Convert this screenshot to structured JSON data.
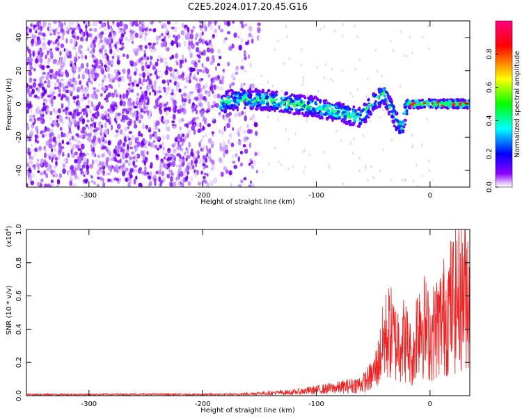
{
  "title": "C2E5.2024.017.20.45.G16",
  "chart_data": [
    {
      "type": "heatmap",
      "xlabel": "Height of straight line (km)",
      "ylabel": "Frequency (Hz)",
      "xlim": [
        -355,
        35
      ],
      "ylim": [
        -50,
        50
      ],
      "xticks": [
        -300,
        -200,
        -100,
        0
      ],
      "yticks": [
        -40,
        -20,
        0,
        20,
        40
      ],
      "colorbar": {
        "label": "Normalized spectral amplitude",
        "range": [
          0,
          1
        ],
        "ticks": [
          0.0,
          0.2,
          0.4,
          0.6,
          0.8
        ],
        "colors": [
          "#ffffff",
          "#8f00ff",
          "#0000ff",
          "#00ffff",
          "#00ff00",
          "#ffff00",
          "#ff0000",
          "#ff0080"
        ]
      },
      "ridge": [
        {
          "x": -180,
          "y": 2
        },
        {
          "x": -160,
          "y": 3
        },
        {
          "x": -140,
          "y": 2
        },
        {
          "x": -120,
          "y": 0
        },
        {
          "x": -100,
          "y": -2
        },
        {
          "x": -80,
          "y": -5
        },
        {
          "x": -60,
          "y": -8
        },
        {
          "x": -50,
          "y": 2
        },
        {
          "x": -40,
          "y": 6
        },
        {
          "x": -30,
          "y": -10
        },
        {
          "x": -25,
          "y": -14
        },
        {
          "x": -20,
          "y": 0
        },
        {
          "x": 0,
          "y": 0
        },
        {
          "x": 20,
          "y": 0
        },
        {
          "x": 35,
          "y": 0
        }
      ]
    },
    {
      "type": "line",
      "xlabel": "Height of straight line (km)",
      "ylabel": "SNR (10 * v/v)",
      "yscale_label": "(x10",
      "yscale_exp": "4",
      "yscale_close": ")",
      "xlim": [
        -355,
        35
      ],
      "ylim": [
        0,
        1.0
      ],
      "xticks": [
        -300,
        -200,
        -100,
        0
      ],
      "yticks": [
        0.0,
        0.2,
        0.4,
        0.6,
        0.8,
        1.0
      ],
      "color": "#ee2222",
      "series": [
        {
          "x": [
            -355,
            -300,
            -250,
            -200,
            -170,
            -150,
            -120,
            -100,
            -80,
            -60,
            -50,
            -45,
            -40,
            -35,
            -30,
            -25,
            -20,
            -15,
            -10,
            -5,
            0,
            10,
            20,
            35
          ],
          "y": [
            0.01,
            0.01,
            0.012,
            0.01,
            0.012,
            0.02,
            0.03,
            0.05,
            0.07,
            0.1,
            0.18,
            0.3,
            0.5,
            0.55,
            0.45,
            0.5,
            0.45,
            0.3,
            0.7,
            0.6,
            0.5,
            0.65,
            0.8,
            0.95
          ]
        }
      ]
    }
  ]
}
